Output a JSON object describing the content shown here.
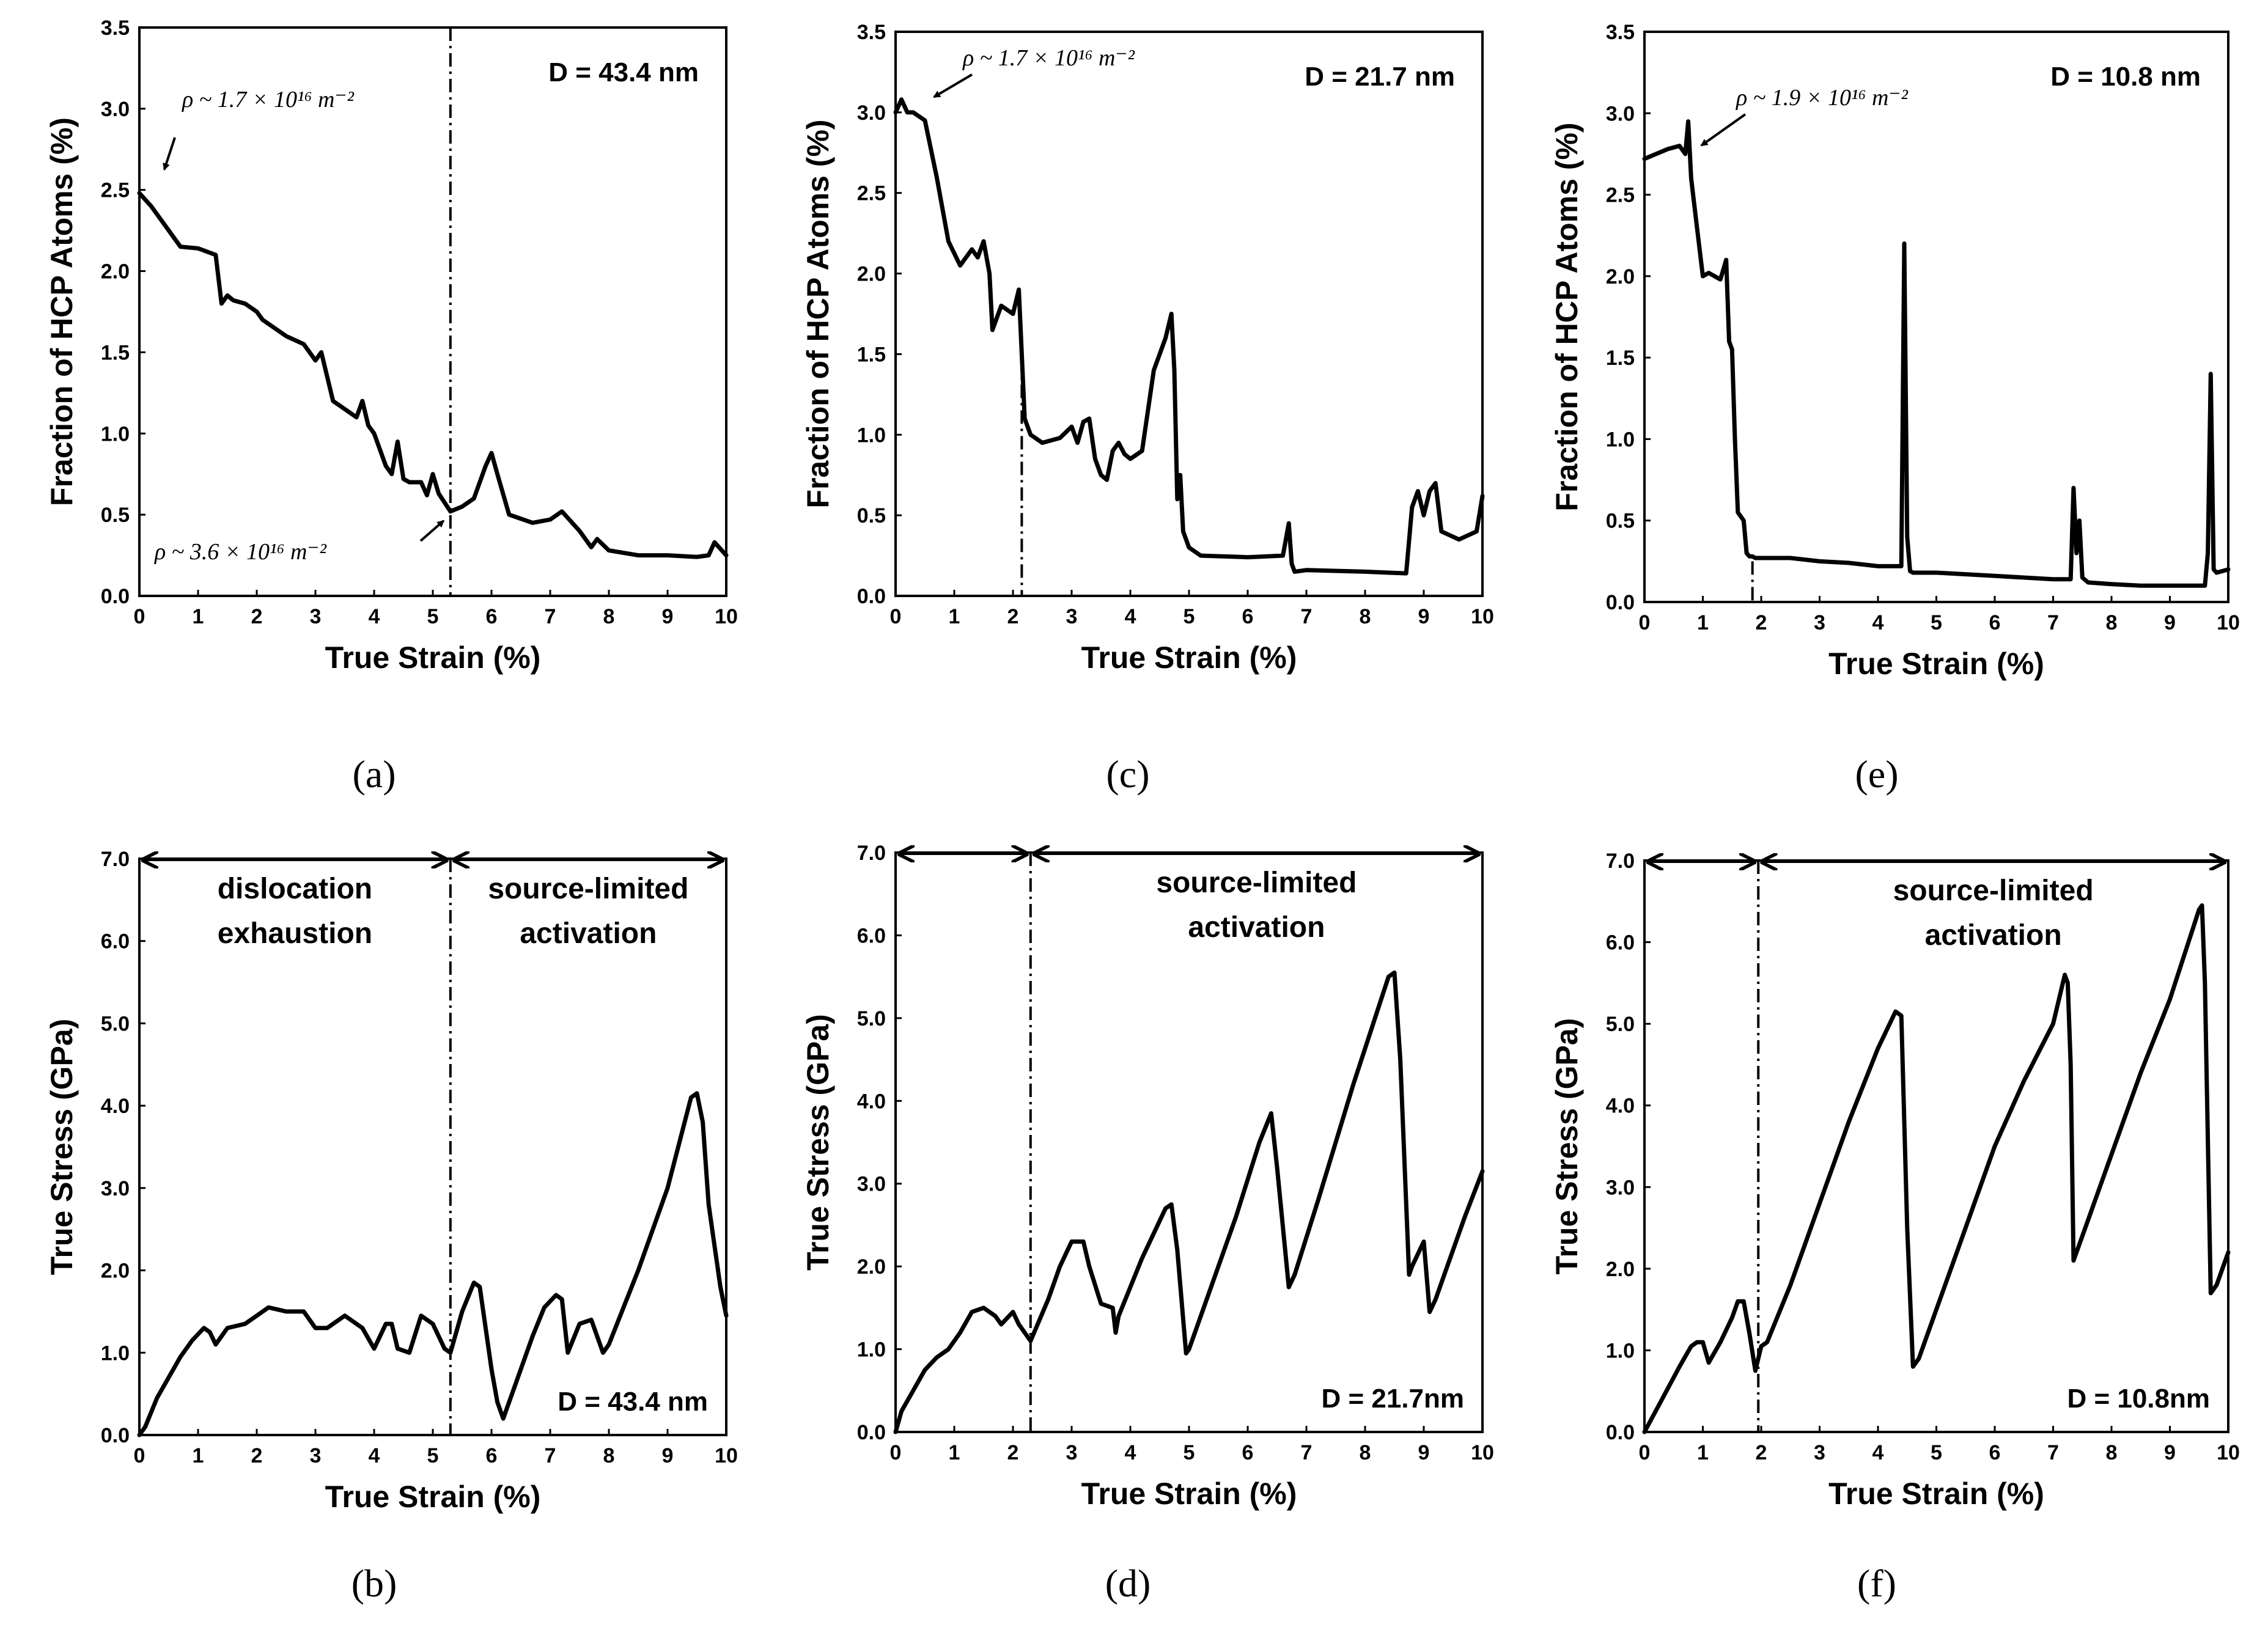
{
  "chart_data": [
    {
      "id": "a",
      "type": "line",
      "caption": "(a)",
      "title": "D = 43.4 nm",
      "xlabel": "True Strain (%)",
      "ylabel": "Fraction of HCP Atoms (%)",
      "xlim": [
        0,
        10
      ],
      "ylim": [
        0,
        3.5
      ],
      "xticks": [
        "0",
        "1",
        "2",
        "3",
        "4",
        "5",
        "6",
        "7",
        "8",
        "9",
        "10"
      ],
      "yticks": [
        "0.0",
        "0.5",
        "1.0",
        "1.5",
        "2.0",
        "2.5",
        "3.0",
        "3.5"
      ],
      "vline": 5.3,
      "vline_style": "full",
      "annotations": [
        {
          "text": "ρ ~ 1.7 × 10¹⁶ m⁻²",
          "point": [
            0.3,
            2.55
          ]
        },
        {
          "text": "ρ ~ 3.6 × 10¹⁶ m⁻²",
          "point": [
            5.35,
            0.5
          ]
        }
      ],
      "x": [
        0,
        0.2,
        0.5,
        0.7,
        1.0,
        1.3,
        1.4,
        1.5,
        1.6,
        1.8,
        2.0,
        2.1,
        2.5,
        2.8,
        3.0,
        3.1,
        3.2,
        3.3,
        3.5,
        3.7,
        3.8,
        3.9,
        4.0,
        4.2,
        4.3,
        4.4,
        4.5,
        4.6,
        4.8,
        4.9,
        5.0,
        5.1,
        5.3,
        5.5,
        5.7,
        5.9,
        6.0,
        6.1,
        6.3,
        6.7,
        7.0,
        7.2,
        7.5,
        7.7,
        7.8,
        8.0,
        8.5,
        9.0,
        9.5,
        9.7,
        9.8,
        10.0
      ],
      "values": [
        2.48,
        2.4,
        2.25,
        2.15,
        2.14,
        2.1,
        1.8,
        1.85,
        1.82,
        1.8,
        1.75,
        1.7,
        1.6,
        1.55,
        1.45,
        1.5,
        1.35,
        1.2,
        1.15,
        1.1,
        1.2,
        1.05,
        1.0,
        0.8,
        0.75,
        0.95,
        0.72,
        0.7,
        0.7,
        0.62,
        0.75,
        0.63,
        0.52,
        0.55,
        0.6,
        0.8,
        0.88,
        0.75,
        0.5,
        0.45,
        0.47,
        0.52,
        0.4,
        0.3,
        0.35,
        0.28,
        0.25,
        0.25,
        0.24,
        0.25,
        0.33,
        0.25
      ]
    },
    {
      "id": "c",
      "type": "line",
      "caption": "(c)",
      "title": "D = 21.7 nm",
      "xlabel": "True Strain (%)",
      "ylabel": "Fraction of HCP Atoms (%)",
      "xlim": [
        0,
        10
      ],
      "ylim": [
        0,
        3.5
      ],
      "xticks": [
        "0",
        "1",
        "2",
        "3",
        "4",
        "5",
        "6",
        "7",
        "8",
        "9",
        "10"
      ],
      "yticks": [
        "0.0",
        "0.5",
        "1.0",
        "1.5",
        "2.0",
        "2.5",
        "3.0",
        "3.5"
      ],
      "vline": 2.15,
      "vline_style": "below",
      "annotations": [
        {
          "text": "ρ ~ 1.7 × 10¹⁶ m⁻²",
          "point": [
            0.55,
            3.05
          ]
        }
      ],
      "x": [
        0,
        0.1,
        0.2,
        0.3,
        0.5,
        0.7,
        0.9,
        1.1,
        1.3,
        1.4,
        1.5,
        1.6,
        1.65,
        1.7,
        1.8,
        2.0,
        2.1,
        2.2,
        2.3,
        2.5,
        2.8,
        3.0,
        3.1,
        3.2,
        3.3,
        3.4,
        3.5,
        3.6,
        3.7,
        3.8,
        3.9,
        4.0,
        4.2,
        4.4,
        4.6,
        4.7,
        4.75,
        4.8,
        4.85,
        4.9,
        5.0,
        5.2,
        6.0,
        6.6,
        6.7,
        6.75,
        6.8,
        7.0,
        8.0,
        8.7,
        8.8,
        8.9,
        9.0,
        9.1,
        9.2,
        9.3,
        9.6,
        9.9,
        10.0
      ],
      "values": [
        3.0,
        3.08,
        3.0,
        3.0,
        2.95,
        2.6,
        2.2,
        2.05,
        2.15,
        2.1,
        2.2,
        2.0,
        1.65,
        1.7,
        1.8,
        1.75,
        1.9,
        1.1,
        1.0,
        0.95,
        0.98,
        1.05,
        0.95,
        1.08,
        1.1,
        0.85,
        0.75,
        0.72,
        0.9,
        0.95,
        0.88,
        0.85,
        0.9,
        1.4,
        1.6,
        1.75,
        1.4,
        0.6,
        0.75,
        0.4,
        0.3,
        0.25,
        0.24,
        0.25,
        0.45,
        0.2,
        0.15,
        0.16,
        0.15,
        0.14,
        0.55,
        0.65,
        0.5,
        0.65,
        0.7,
        0.4,
        0.35,
        0.4,
        0.62
      ]
    },
    {
      "id": "e",
      "type": "line",
      "caption": "(e)",
      "title": "D = 10.8 nm",
      "xlabel": "True Strain (%)",
      "ylabel": "Fraction of HCP Atoms (%)",
      "xlim": [
        0,
        10
      ],
      "ylim": [
        0,
        3.5
      ],
      "xticks": [
        "0",
        "1",
        "2",
        "3",
        "4",
        "5",
        "6",
        "7",
        "8",
        "9",
        "10"
      ],
      "yticks": [
        "0.0",
        "0.5",
        "1.0",
        "1.5",
        "2.0",
        "2.5",
        "3.0",
        "3.5"
      ],
      "vline": 1.85,
      "vline_style": "below",
      "annotations": [
        {
          "text": "ρ ~ 1.9 × 10¹⁶ m⁻²",
          "point": [
            0.85,
            2.75
          ]
        }
      ],
      "x": [
        0,
        0.2,
        0.4,
        0.6,
        0.7,
        0.75,
        0.8,
        0.9,
        1.0,
        1.1,
        1.2,
        1.3,
        1.4,
        1.45,
        1.5,
        1.55,
        1.6,
        1.7,
        1.75,
        1.8,
        1.85,
        1.9,
        2.5,
        3.0,
        3.5,
        4.0,
        4.4,
        4.45,
        4.5,
        4.55,
        4.6,
        5.0,
        6.0,
        7.0,
        7.3,
        7.35,
        7.4,
        7.45,
        7.5,
        7.6,
        8.0,
        8.5,
        9.0,
        9.6,
        9.65,
        9.7,
        9.75,
        9.8,
        10.0
      ],
      "values": [
        2.72,
        2.75,
        2.78,
        2.8,
        2.75,
        2.95,
        2.6,
        2.3,
        2.0,
        2.02,
        2.0,
        1.98,
        2.1,
        1.6,
        1.55,
        1.0,
        0.55,
        0.5,
        0.3,
        0.28,
        0.28,
        0.27,
        0.27,
        0.25,
        0.24,
        0.22,
        0.22,
        2.2,
        0.4,
        0.19,
        0.18,
        0.18,
        0.16,
        0.14,
        0.14,
        0.7,
        0.3,
        0.5,
        0.15,
        0.12,
        0.11,
        0.1,
        0.1,
        0.1,
        0.3,
        1.4,
        0.2,
        0.18,
        0.2
      ]
    },
    {
      "id": "b",
      "type": "line",
      "caption": "(b)",
      "title": "D = 43.4 nm",
      "xlabel": "True Strain (%)",
      "ylabel": "True Stress (GPa)",
      "xlim": [
        0,
        10
      ],
      "ylim": [
        0,
        7
      ],
      "xticks": [
        "0",
        "1",
        "2",
        "3",
        "4",
        "5",
        "6",
        "7",
        "8",
        "9",
        "10"
      ],
      "yticks": [
        "0.0",
        "1.0",
        "2.0",
        "3.0",
        "4.0",
        "5.0",
        "6.0",
        "7.0"
      ],
      "vline": 5.3,
      "vline_style": "full",
      "region_split": 5.3,
      "regions": [
        {
          "label1": "dislocation",
          "label2": "exhaustion"
        },
        {
          "label1": "source-limited",
          "label2": "activation"
        }
      ],
      "x": [
        0,
        0.1,
        0.3,
        0.5,
        0.7,
        0.9,
        1.1,
        1.2,
        1.3,
        1.5,
        1.8,
        2.0,
        2.2,
        2.5,
        2.8,
        3.0,
        3.2,
        3.5,
        3.8,
        4.0,
        4.2,
        4.3,
        4.4,
        4.6,
        4.8,
        5.0,
        5.2,
        5.3,
        5.5,
        5.7,
        5.8,
        5.9,
        6.0,
        6.1,
        6.2,
        6.4,
        6.7,
        6.9,
        7.1,
        7.2,
        7.3,
        7.5,
        7.7,
        7.9,
        8.0,
        8.5,
        9.0,
        9.4,
        9.5,
        9.6,
        9.7,
        9.9,
        10.0
      ],
      "values": [
        0,
        0.1,
        0.45,
        0.7,
        0.95,
        1.15,
        1.3,
        1.25,
        1.1,
        1.3,
        1.35,
        1.45,
        1.55,
        1.5,
        1.5,
        1.3,
        1.3,
        1.45,
        1.3,
        1.05,
        1.35,
        1.35,
        1.05,
        1.0,
        1.45,
        1.35,
        1.05,
        1.0,
        1.5,
        1.85,
        1.8,
        1.3,
        0.8,
        0.4,
        0.2,
        0.6,
        1.2,
        1.55,
        1.7,
        1.65,
        1.0,
        1.35,
        1.4,
        1.0,
        1.1,
        2.0,
        3.0,
        4.1,
        4.15,
        3.8,
        2.8,
        1.8,
        1.45
      ]
    },
    {
      "id": "d",
      "type": "line",
      "caption": "(d)",
      "title": "D =  21.7nm",
      "xlabel": "True Strain (%)",
      "ylabel": "True Stress (GPa)",
      "xlim": [
        0,
        10
      ],
      "ylim": [
        0,
        7
      ],
      "xticks": [
        "0",
        "1",
        "2",
        "3",
        "4",
        "5",
        "6",
        "7",
        "8",
        "9",
        "10"
      ],
      "yticks": [
        "0.0",
        "1.0",
        "2.0",
        "3.0",
        "4.0",
        "5.0",
        "6.0",
        "7.0"
      ],
      "vline": 2.3,
      "vline_style": "full",
      "region_split": 2.3,
      "regions": [
        {
          "label1": "",
          "label2": ""
        },
        {
          "label1": "source-limited",
          "label2": "activation"
        }
      ],
      "x": [
        0,
        0.1,
        0.3,
        0.5,
        0.7,
        0.9,
        1.1,
        1.3,
        1.5,
        1.7,
        1.8,
        2.0,
        2.1,
        2.3,
        2.6,
        2.8,
        3.0,
        3.2,
        3.3,
        3.5,
        3.7,
        3.75,
        3.8,
        4.2,
        4.6,
        4.7,
        4.8,
        4.95,
        5.0,
        5.3,
        5.8,
        6.2,
        6.4,
        6.5,
        6.7,
        6.8,
        7.2,
        7.8,
        8.4,
        8.5,
        8.6,
        8.75,
        8.8,
        9.0,
        9.1,
        9.2,
        9.4,
        9.7,
        10.0
      ],
      "values": [
        0,
        0.25,
        0.5,
        0.75,
        0.9,
        1.0,
        1.2,
        1.45,
        1.5,
        1.4,
        1.3,
        1.45,
        1.3,
        1.1,
        1.6,
        2.0,
        2.3,
        2.3,
        2.0,
        1.55,
        1.5,
        1.2,
        1.4,
        2.1,
        2.7,
        2.75,
        2.2,
        0.95,
        1.0,
        1.6,
        2.6,
        3.5,
        3.85,
        3.2,
        1.75,
        1.9,
        2.8,
        4.2,
        5.5,
        5.55,
        4.5,
        1.9,
        2.0,
        2.3,
        1.45,
        1.6,
        2.0,
        2.6,
        3.15
      ]
    },
    {
      "id": "f",
      "type": "line",
      "caption": "(f)",
      "title": "D =  10.8nm",
      "xlabel": "True Strain (%)",
      "ylabel": "True Stress (GPa)",
      "xlim": [
        0,
        10
      ],
      "ylim": [
        0,
        7
      ],
      "xticks": [
        "0",
        "1",
        "2",
        "3",
        "4",
        "5",
        "6",
        "7",
        "8",
        "9",
        "10"
      ],
      "yticks": [
        "0.0",
        "1.0",
        "2.0",
        "3.0",
        "4.0",
        "5.0",
        "6.0",
        "7.0"
      ],
      "vline": 1.95,
      "vline_style": "full",
      "region_split": 1.95,
      "regions": [
        {
          "label1": "",
          "label2": ""
        },
        {
          "label1": "source-limited",
          "label2": "activation"
        }
      ],
      "x": [
        0,
        0.3,
        0.6,
        0.8,
        0.9,
        1.0,
        1.1,
        1.3,
        1.5,
        1.6,
        1.7,
        1.8,
        1.9,
        2.0,
        2.1,
        2.5,
        3.0,
        3.5,
        4.0,
        4.3,
        4.4,
        4.5,
        4.6,
        4.7,
        5.0,
        5.5,
        6.0,
        6.5,
        7.0,
        7.2,
        7.25,
        7.3,
        7.35,
        7.5,
        8.0,
        8.5,
        9.0,
        9.5,
        9.55,
        9.6,
        9.7,
        9.8,
        10.0
      ],
      "values": [
        0,
        0.4,
        0.8,
        1.05,
        1.1,
        1.1,
        0.85,
        1.1,
        1.4,
        1.6,
        1.6,
        1.2,
        0.75,
        1.05,
        1.1,
        1.8,
        2.8,
        3.8,
        4.7,
        5.15,
        5.1,
        2.5,
        0.8,
        0.9,
        1.5,
        2.5,
        3.5,
        4.3,
        5.0,
        5.6,
        5.5,
        4.5,
        2.1,
        2.4,
        3.4,
        4.4,
        5.3,
        6.4,
        6.45,
        5.5,
        1.7,
        1.8,
        2.2
      ]
    }
  ]
}
